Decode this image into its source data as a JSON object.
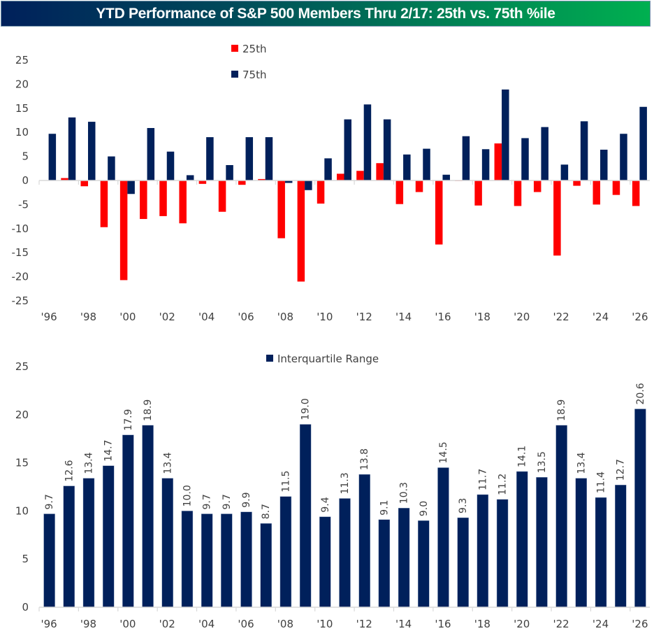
{
  "header": {
    "title": "YTD Performance of S&P 500 Members Thru 2/17: 25th vs. 75th %ile"
  },
  "colors": {
    "p25": "#ff0000",
    "p75": "#00205b",
    "iqr": "#00205b",
    "axis": "#d9d9d9",
    "text": "#404040",
    "banner_start": "#00205b",
    "banner_end": "#00b050"
  },
  "chart_data": [
    {
      "type": "bar",
      "title": "YTD Performance of S&P 500 Members Thru 2/17: 25th vs. 75th %ile",
      "xlabel": "",
      "ylabel": "",
      "ylim": [
        -25,
        25
      ],
      "yticks": [
        25,
        20,
        15,
        10,
        5,
        0,
        -5,
        -10,
        -15,
        -20,
        -25
      ],
      "grid": false,
      "legend": "top-center",
      "categories": [
        "1996",
        "1997",
        "1998",
        "1999",
        "2000",
        "2001",
        "2002",
        "2003",
        "2004",
        "2005",
        "2006",
        "2007",
        "2008",
        "2009",
        "2010",
        "2011",
        "2012",
        "2013",
        "2014",
        "2015",
        "2016",
        "2017",
        "2018",
        "2019",
        "2020",
        "2021",
        "2022",
        "2023",
        "2024",
        "2025",
        "2026"
      ],
      "xtick_labels": [
        "'96",
        "'98",
        "'00",
        "'02",
        "'04",
        "'06",
        "'08",
        "'10",
        "'12",
        "'14",
        "'16",
        "'18",
        "'20",
        "'22",
        "'24",
        "'26"
      ],
      "series": [
        {
          "name": "25th",
          "values": [
            0.0,
            0.5,
            -1.2,
            -9.7,
            -20.7,
            -8.0,
            -7.4,
            -8.9,
            -0.7,
            -6.5,
            -0.9,
            0.3,
            -12.0,
            -21.0,
            -4.8,
            1.4,
            2.0,
            3.6,
            -4.9,
            -2.4,
            -13.3,
            -0.1,
            -5.2,
            7.7,
            -5.3,
            -2.4,
            -15.6,
            -1.1,
            -5.0,
            -3.0,
            -5.3
          ]
        },
        {
          "name": "75th",
          "values": [
            9.7,
            13.1,
            12.2,
            5.0,
            -2.8,
            10.9,
            6.0,
            1.1,
            9.0,
            3.2,
            9.0,
            9.0,
            -0.5,
            -2.0,
            4.6,
            12.7,
            15.8,
            12.7,
            5.4,
            6.6,
            1.2,
            9.2,
            6.5,
            18.9,
            8.8,
            11.1,
            3.3,
            12.3,
            6.4,
            9.7,
            15.3
          ]
        }
      ]
    },
    {
      "type": "bar",
      "title": "",
      "xlabel": "",
      "ylabel": "",
      "ylim": [
        0,
        25
      ],
      "yticks": [
        25,
        20,
        15,
        10,
        5,
        0
      ],
      "grid": false,
      "legend": "top-center",
      "categories": [
        "1996",
        "1997",
        "1998",
        "1999",
        "2000",
        "2001",
        "2002",
        "2003",
        "2004",
        "2005",
        "2006",
        "2007",
        "2008",
        "2009",
        "2010",
        "2011",
        "2012",
        "2013",
        "2014",
        "2015",
        "2016",
        "2017",
        "2018",
        "2019",
        "2020",
        "2021",
        "2022",
        "2023",
        "2024",
        "2025",
        "2026"
      ],
      "xtick_labels": [
        "'96",
        "'98",
        "'00",
        "'02",
        "'04",
        "'06",
        "'08",
        "'10",
        "'12",
        "'14",
        "'16",
        "'18",
        "'20",
        "'22",
        "'24",
        "'26"
      ],
      "series": [
        {
          "name": "Interquartile Range",
          "values": [
            9.7,
            12.6,
            13.4,
            14.7,
            17.9,
            18.9,
            13.4,
            10.0,
            9.7,
            9.7,
            9.9,
            8.7,
            11.5,
            19.0,
            9.4,
            11.3,
            13.8,
            9.1,
            10.3,
            9.0,
            14.5,
            9.3,
            11.7,
            11.2,
            14.1,
            13.5,
            18.9,
            13.4,
            11.4,
            12.7,
            20.6
          ],
          "data_labels": [
            "9.7",
            "12.6",
            "13.4",
            "14.7",
            "17.9",
            "18.9",
            "13.4",
            "10.0",
            "9.7",
            "9.7",
            "9.9",
            "8.7",
            "11.5",
            "19.0",
            "9.4",
            "11.3",
            "13.8",
            "9.1",
            "10.3",
            "9.0",
            "14.5",
            "9.3",
            "11.7",
            "11.2",
            "14.1",
            "13.5",
            "18.9",
            "13.4",
            "11.4",
            "12.7",
            "20.6"
          ]
        }
      ]
    }
  ]
}
